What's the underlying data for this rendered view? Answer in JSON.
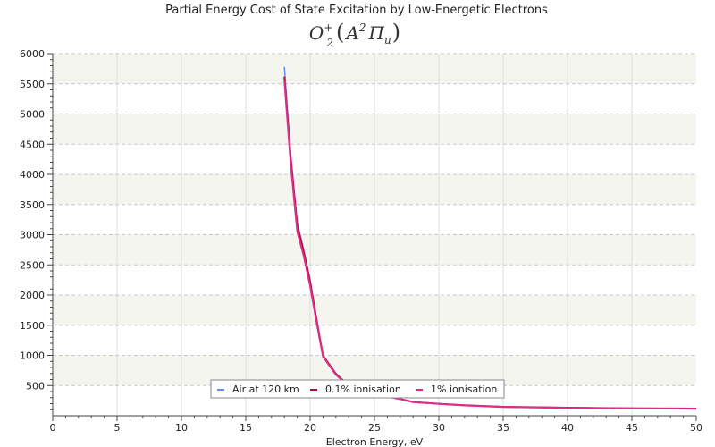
{
  "chart_data": {
    "type": "line",
    "title": "Partial Energy Cost of State Excitation by Low-Energetic Electrons",
    "subtitle": "O2+(A2Πu)",
    "formula": {
      "base": "O",
      "sub": "2",
      "sup": "+",
      "open": "(",
      "state": "A",
      "state_sup": "2",
      "term": "Π",
      "term_sub": "u",
      "close": ")"
    },
    "xlabel": "Electron Energy, eV",
    "ylabel": "",
    "xlim": [
      0,
      50
    ],
    "ylim": [
      0,
      6000
    ],
    "x_ticks": [
      "0",
      "5",
      "10",
      "15",
      "20",
      "25",
      "30",
      "35",
      "40",
      "45",
      "50"
    ],
    "y_ticks": [
      "500",
      "1000",
      "1500",
      "2000",
      "2500",
      "3000",
      "3500",
      "4000",
      "4500",
      "5000",
      "5500",
      "6000"
    ],
    "grid": true,
    "legend_position": "bottom-center",
    "series": [
      {
        "name": "Air at 120 km",
        "color": "#5b8def",
        "width": 1.5,
        "x": [
          18,
          18.5,
          19,
          19.5,
          20,
          20.5,
          21,
          21.5,
          22,
          22.5,
          23,
          24,
          25,
          26,
          27,
          28,
          30,
          32,
          35,
          40,
          45,
          50
        ],
        "y": [
          5780,
          4300,
          3200,
          2750,
          2250,
          1600,
          1000,
          850,
          700,
          600,
          530,
          430,
          380,
          320,
          280,
          230,
          200,
          175,
          150,
          135,
          125,
          120
        ]
      },
      {
        "name": "0.1% ionisation",
        "color": "#b01030",
        "width": 2,
        "x": [
          18,
          18.5,
          19,
          19.5,
          20,
          20.5,
          21,
          21.5,
          22,
          22.5,
          23,
          24,
          25,
          26,
          27,
          28,
          30,
          32,
          35,
          40,
          45,
          50
        ],
        "y": [
          5620,
          4250,
          3150,
          2720,
          2220,
          1590,
          995,
          845,
          695,
          595,
          525,
          425,
          375,
          318,
          278,
          228,
          198,
          173,
          148,
          133,
          123,
          118
        ]
      },
      {
        "name": "1% ionisation",
        "color": "#e02d8c",
        "width": 2,
        "x": [
          18,
          18.5,
          19,
          19.5,
          20,
          20.5,
          21,
          21.5,
          22,
          22.5,
          23,
          24,
          25,
          26,
          27,
          28,
          30,
          32,
          35,
          40,
          45,
          50
        ],
        "y": [
          5550,
          4150,
          3050,
          2650,
          2150,
          1550,
          980,
          830,
          680,
          585,
          520,
          420,
          370,
          315,
          275,
          225,
          195,
          170,
          145,
          130,
          120,
          115
        ]
      }
    ]
  }
}
